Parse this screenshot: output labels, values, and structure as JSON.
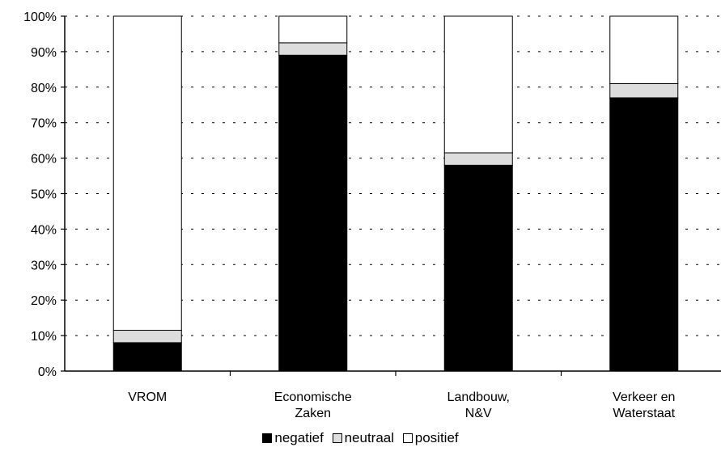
{
  "chart_data": {
    "type": "bar",
    "stacked": true,
    "percent": true,
    "categories": [
      [
        "VROM"
      ],
      [
        "Economische",
        "Zaken"
      ],
      [
        "Landbouw,",
        "N&V"
      ],
      [
        "Verkeer en",
        "Waterstaat"
      ]
    ],
    "series": [
      {
        "name": "negatief",
        "color": "#000000",
        "values": [
          8,
          89,
          58,
          77
        ]
      },
      {
        "name": "neutraal",
        "color": "#dddddd",
        "values": [
          3.5,
          3.5,
          3.5,
          4
        ]
      },
      {
        "name": "positief",
        "color": "#ffffff",
        "values": [
          88.5,
          7.5,
          38.5,
          19
        ]
      }
    ],
    "ylim": [
      0,
      100
    ],
    "yticks": [
      "0%",
      "10%",
      "20%",
      "30%",
      "40%",
      "50%",
      "60%",
      "70%",
      "80%",
      "90%",
      "100%"
    ],
    "grid": "dotted-horizontal",
    "legend_position": "bottom"
  }
}
